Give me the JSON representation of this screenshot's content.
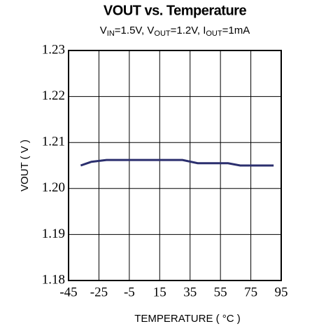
{
  "chart_data": {
    "type": "line",
    "title": "VOUT vs. Temperature",
    "subtitle_parts": [
      "V",
      "IN",
      "=1.5V, V",
      "OUT",
      "=1.2V,  I",
      "OUT",
      "=1mA"
    ],
    "xlabel": "TEMPERATURE ( °C )",
    "ylabel": "VOUT ( V )",
    "x": [
      -37,
      -30,
      -20,
      30,
      40,
      60,
      68,
      90
    ],
    "series": [
      {
        "color": "#2b2f6e",
        "values": [
          1.205,
          1.2058,
          1.2062,
          1.2062,
          1.2055,
          1.2055,
          1.205,
          1.205
        ]
      }
    ],
    "xlim": [
      -45,
      95
    ],
    "xticks": [
      -45,
      -25,
      -5,
      15,
      35,
      55,
      75,
      95
    ],
    "ylim": [
      1.18,
      1.23
    ],
    "yticks": [
      1.18,
      1.19,
      {
        "value": 1.2,
        "label": "1.20"
      },
      1.21,
      1.22,
      1.23
    ],
    "grid": true
  }
}
